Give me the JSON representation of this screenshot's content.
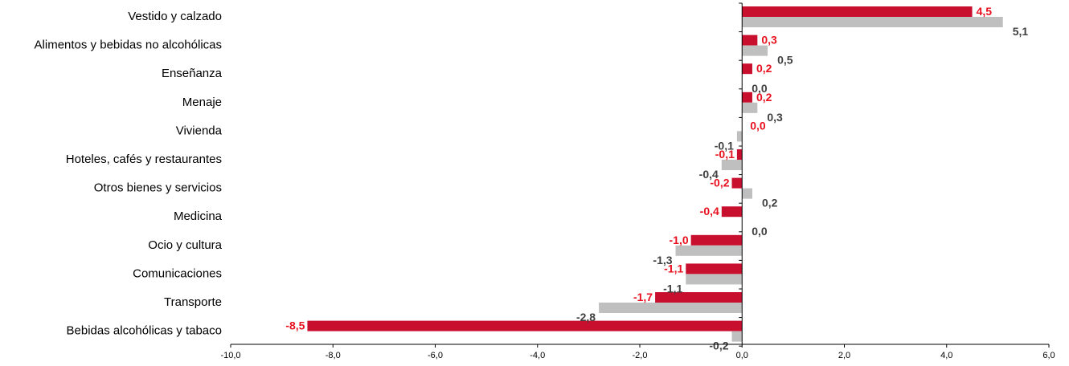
{
  "chart_data": {
    "type": "bar",
    "orientation": "horizontal",
    "categories": [
      "Vestido y calzado",
      "Alimentos y bebidas no alcohólicas",
      "Enseñanza",
      "Menaje",
      "Vivienda",
      "Hoteles, cafés y restaurantes",
      "Otros bienes y servicios",
      "Medicina",
      "Ocio y cultura",
      "Comunicaciones",
      "Transporte",
      "Bebidas alcohólicas y tabaco"
    ],
    "series": [
      {
        "color": "#C8102E",
        "label_color": "#E8101E",
        "values": [
          4.5,
          0.3,
          0.2,
          0.2,
          0.0,
          -0.1,
          -0.2,
          -0.4,
          -1.0,
          -1.1,
          -1.7,
          -8.5
        ],
        "labels": [
          "4,5",
          "0,3",
          "0,2",
          "0,2",
          "0,0",
          "-0,1",
          "-0,2",
          "-0,4",
          "-1,0",
          "-1,1",
          "-1,7",
          "-8,5"
        ]
      },
      {
        "color": "#BFBFBF",
        "label_color": "#404040",
        "values": [
          5.1,
          0.5,
          0.0,
          0.3,
          -0.1,
          -0.4,
          0.2,
          0.0,
          -1.3,
          -1.1,
          -2.8,
          -0.2
        ],
        "labels": [
          "5,1",
          "0,5",
          "0,0",
          "0,3",
          "-0,1",
          "-0,4",
          "0,2",
          "0,0",
          "-1,3",
          "-1,1",
          "-2,8",
          "-0,2"
        ]
      }
    ],
    "xlim": [
      -10,
      6
    ],
    "xticks": [
      -10,
      -8,
      -6,
      -4,
      -2,
      0,
      2,
      4,
      6
    ],
    "xtick_labels": [
      "-10,0",
      "-8,0",
      "-6,0",
      "-4,0",
      "-2,0",
      "0,0",
      "2,0",
      "4,0",
      "6,0"
    ],
    "grid": false,
    "legend": "none"
  }
}
